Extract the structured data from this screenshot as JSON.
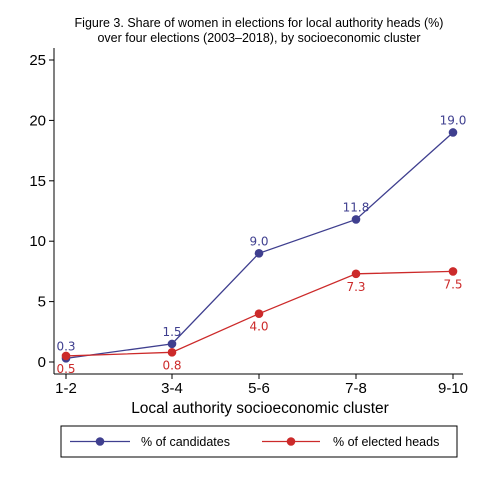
{
  "chart_data": {
    "type": "line",
    "title": [
      "Figure 3. Share of women in elections for local authority heads (%)",
      "over four elections (2003–2018), by socioeconomic cluster"
    ],
    "xlabel": "Local authority socioeconomic cluster",
    "ylabel": "",
    "categories": [
      "1-2",
      "3-4",
      "5-6",
      "7-8",
      "9-10"
    ],
    "ylim": [
      0,
      25
    ],
    "yticks": [
      0,
      5,
      10,
      15,
      20,
      25
    ],
    "grid": false,
    "legend_position": "bottom",
    "series": [
      {
        "name": "% of candidates",
        "color": "#3f3f8f",
        "values": [
          0.3,
          1.5,
          9.0,
          11.8,
          19.0
        ],
        "labels": [
          "0.3",
          "1.5",
          "9.0",
          "11.8",
          "19.0"
        ],
        "label_position": "above"
      },
      {
        "name": "% of elected heads",
        "color": "#cc2a2a",
        "values": [
          0.5,
          0.8,
          4.0,
          7.3,
          7.5
        ],
        "labels": [
          "0.5",
          "0.8",
          "4.0",
          "7.3",
          "7.5"
        ],
        "label_position": "below"
      }
    ]
  }
}
